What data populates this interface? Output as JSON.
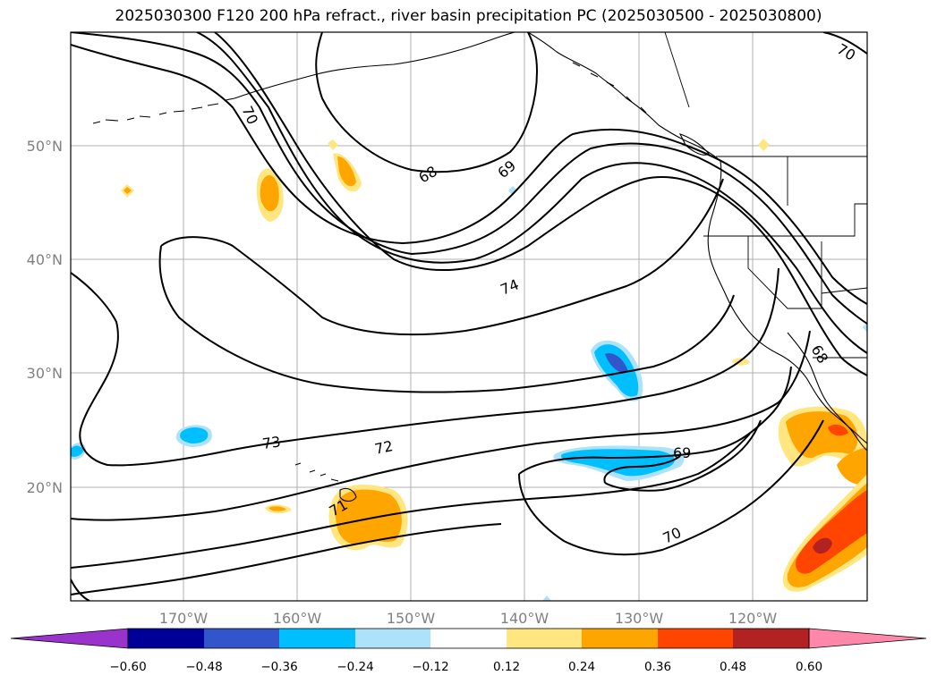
{
  "title": "2025030300 F120 200 hPa refract., river basin precipitation PC (2025030500 - 2025030800)",
  "map": {
    "lon_labels": [
      "170°W",
      "160°W",
      "150°W",
      "140°W",
      "130°W",
      "120°W"
    ],
    "lat_labels": [
      "50°N",
      "40°N",
      "30°N",
      "20°N"
    ],
    "contour_labels": [
      "70",
      "68",
      "69",
      "74",
      "73",
      "72",
      "71",
      "69",
      "70",
      "68",
      "70"
    ]
  },
  "colorbar": {
    "labels": [
      "−0.60",
      "−0.48",
      "−0.36",
      "−0.24",
      "−0.12",
      "0.12",
      "0.24",
      "0.36",
      "0.48",
      "0.60"
    ],
    "colors": [
      "#9933cc",
      "#000099",
      "#3355cc",
      "#00bfff",
      "#aee2fa",
      "#ffffff",
      "#ffe680",
      "#ffa500",
      "#ff4500",
      "#b22222",
      "#ff88aa"
    ]
  }
}
